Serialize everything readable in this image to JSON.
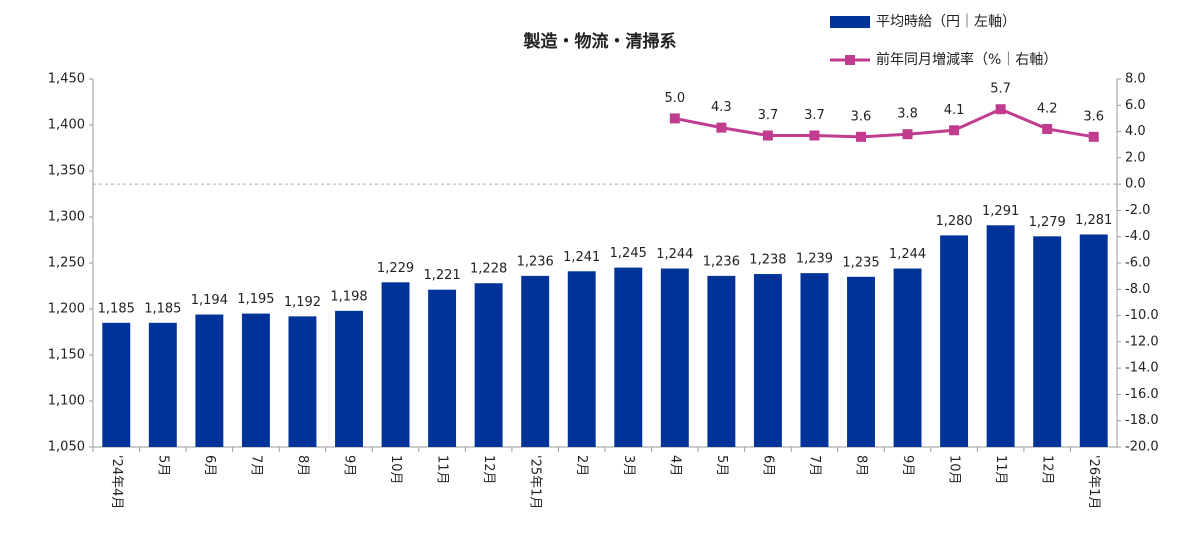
{
  "chart_data": {
    "type": "bar_line",
    "title": "製造・物流・清掃系",
    "categories": [
      "'24年4月",
      "5月",
      "6月",
      "7月",
      "8月",
      "9月",
      "10月",
      "11月",
      "12月",
      "'25年1月",
      "2月",
      "3月",
      "4月",
      "5月",
      "6月",
      "7月",
      "8月",
      "9月",
      "10月",
      "11月",
      "12月",
      "'26年1月"
    ],
    "series": [
      {
        "name": "平均時給（円｜左軸）",
        "type": "bar",
        "color": "#003399",
        "values": [
          1185,
          1185,
          1194,
          1195,
          1192,
          1198,
          1229,
          1221,
          1228,
          1236,
          1241,
          1245,
          1244,
          1236,
          1238,
          1239,
          1235,
          1244,
          1280,
          1291,
          1279,
          1281
        ],
        "value_labels": [
          "1,185",
          "1,185",
          "1,194",
          "1,195",
          "1,192",
          "1,198",
          "1,229",
          "1,221",
          "1,228",
          "1,236",
          "1,241",
          "1,245",
          "1,244",
          "1,236",
          "1,238",
          "1,239",
          "1,235",
          "1,244",
          "1,280",
          "1,291",
          "1,279",
          "1,281"
        ]
      },
      {
        "name": "前年同月増減率（%｜右軸）",
        "type": "line",
        "axis": "y2",
        "color": "#c13c8f",
        "values": [
          null,
          null,
          null,
          null,
          null,
          null,
          null,
          null,
          null,
          null,
          null,
          null,
          5.0,
          4.3,
          3.7,
          3.7,
          3.6,
          3.8,
          4.1,
          5.7,
          4.2,
          3.6
        ],
        "value_labels": [
          null,
          null,
          null,
          null,
          null,
          null,
          null,
          null,
          null,
          null,
          null,
          null,
          "5.0",
          "4.3",
          "3.7",
          "3.7",
          "3.6",
          "3.8",
          "4.1",
          "5.7",
          "4.2",
          "3.6"
        ]
      }
    ],
    "ylim": [
      1050,
      1450
    ],
    "yticks": [
      {
        "value": 1050,
        "label": "1,050"
      },
      {
        "value": 1100,
        "label": "1,100"
      },
      {
        "value": 1150,
        "label": "1,150"
      },
      {
        "value": 1200,
        "label": "1,200"
      },
      {
        "value": 1250,
        "label": "1,250"
      },
      {
        "value": 1300,
        "label": "1,300"
      },
      {
        "value": 1350,
        "label": "1,350"
      },
      {
        "value": 1400,
        "label": "1,400"
      },
      {
        "value": 1450,
        "label": "1,450"
      }
    ],
    "y2lim": [
      -20,
      8
    ],
    "y2ticks": [
      {
        "value": -20,
        "label": "-20.0"
      },
      {
        "value": -18,
        "label": "-18.0"
      },
      {
        "value": -16,
        "label": "-16.0"
      },
      {
        "value": -14,
        "label": "-14.0"
      },
      {
        "value": -12,
        "label": "-12.0"
      },
      {
        "value": -10,
        "label": "-10.0"
      },
      {
        "value": -8,
        "label": "-8.0"
      },
      {
        "value": -6,
        "label": "-6.0"
      },
      {
        "value": -4,
        "label": "-4.0"
      },
      {
        "value": -2,
        "label": "-2.0"
      },
      {
        "value": 0,
        "label": "0.0"
      },
      {
        "value": 2,
        "label": "2.0"
      },
      {
        "value": 4,
        "label": "4.0"
      },
      {
        "value": 6,
        "label": "6.0"
      },
      {
        "value": 8,
        "label": "8.0"
      }
    ],
    "zero_line": true,
    "grid": false,
    "legend": "top-right"
  }
}
